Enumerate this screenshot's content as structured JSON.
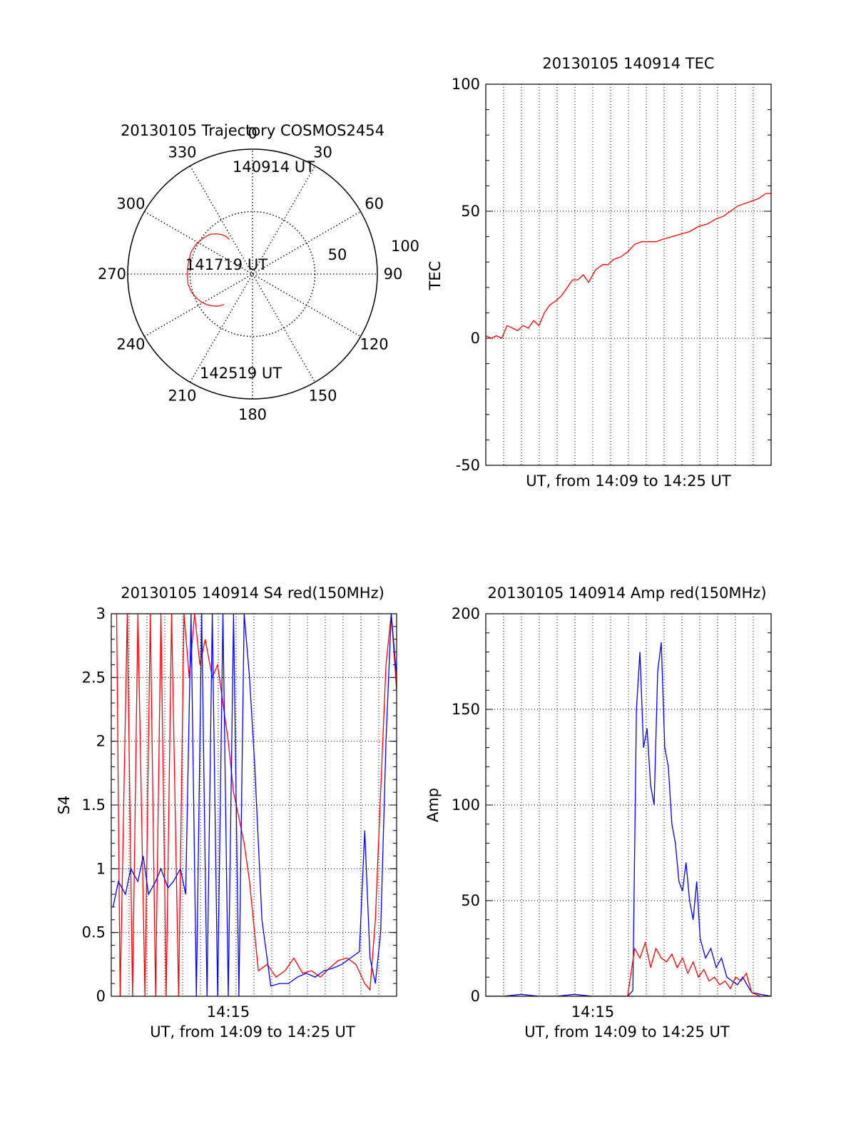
{
  "colors": {
    "red": "#ff0000",
    "blue": "#0000ff",
    "axis": "#000000"
  },
  "chart_data": [
    {
      "id": "trajectory",
      "type": "polar",
      "title": "20130105 Trajectory COSMOS2454",
      "angle_labels": [
        "0",
        "30",
        "60",
        "90",
        "120",
        "150",
        "180",
        "210",
        "240",
        "270",
        "300",
        "330"
      ],
      "radial_labels": [
        "50",
        "100"
      ],
      "annotations": [
        "140914 UT",
        "141719 UT",
        "142519 UT"
      ],
      "path_color": "red",
      "path": [
        [
          326,
          60
        ],
        [
          325,
          57
        ],
        [
          322,
          54
        ],
        [
          318,
          51
        ],
        [
          313,
          48
        ],
        [
          306,
          46
        ],
        [
          298,
          44
        ],
        [
          290,
          43
        ],
        [
          282,
          43
        ],
        [
          275,
          43
        ],
        [
          268,
          43
        ],
        [
          261,
          43
        ],
        [
          254,
          44
        ],
        [
          247,
          46
        ],
        [
          241,
          48
        ],
        [
          235,
          51
        ],
        [
          230,
          54
        ],
        [
          226,
          57
        ],
        [
          223,
          60
        ]
      ]
    },
    {
      "id": "tec",
      "type": "line",
      "title": "20130105 140914 TEC",
      "xlabel": "UT, from 14:09 to 14:25 UT",
      "ylabel": "TEC",
      "ylim": [
        -50,
        100
      ],
      "y_ticks": [
        "100",
        "50",
        "0",
        "-50"
      ],
      "x_ticks": [],
      "xlim": [
        0,
        16.1
      ],
      "series": [
        {
          "color": "red",
          "x": [
            0,
            0.3,
            0.6,
            0.9,
            1.2,
            1.5,
            1.8,
            2.1,
            2.4,
            2.7,
            3.0,
            3.3,
            3.6,
            4.0,
            4.3,
            4.6,
            4.9,
            5.2,
            5.5,
            5.8,
            6.2,
            6.6,
            6.9,
            7.2,
            7.6,
            8.0,
            8.4,
            8.8,
            9.2,
            9.6,
            10.0,
            10.5,
            11.0,
            11.5,
            12.0,
            12.5,
            13.0,
            13.4,
            13.8,
            14.2,
            14.6,
            15.0,
            15.4,
            15.8,
            16.1
          ],
          "y": [
            1,
            0,
            1,
            0,
            5,
            4,
            3,
            5,
            4,
            7,
            5,
            10,
            13,
            15,
            17,
            20,
            23,
            23,
            25,
            22,
            27,
            29,
            29,
            31,
            32,
            34,
            37,
            38,
            38,
            38,
            39,
            40,
            41,
            42,
            44,
            45,
            47,
            48,
            50,
            52,
            53,
            54,
            55,
            57,
            57
          ]
        }
      ]
    },
    {
      "id": "s4",
      "type": "line",
      "title": "20130105 140914 S4 red(150MHz)",
      "xlabel": "UT, from 14:09 to 14:25 UT",
      "ylabel": "S4",
      "ylim": [
        0,
        3
      ],
      "y_ticks": [
        "3",
        "2.5",
        "2",
        "1.5",
        "1",
        "0.5",
        "0"
      ],
      "x_ticks": [
        "14:15"
      ],
      "xlim": [
        0,
        16.1
      ],
      "series": [
        {
          "color": "red",
          "x": [
            0.3,
            0.5,
            0.9,
            1.2,
            1.5,
            1.9,
            2.2,
            2.5,
            2.8,
            3.1,
            3.4,
            3.8,
            4.1,
            4.4,
            4.7,
            5.0,
            5.3,
            5.7,
            6.0,
            6.3,
            6.6,
            6.9,
            7.2,
            7.5,
            7.8,
            8.3,
            8.8,
            9.3,
            9.8,
            10.3,
            10.8,
            11.3,
            11.8,
            12.3,
            12.8,
            13.3,
            13.8,
            14.3,
            14.6,
            14.9,
            15.2,
            15.5,
            15.8,
            16.1
          ],
          "y": [
            3,
            0,
            3,
            0,
            3,
            0,
            3,
            0,
            3,
            0,
            3,
            0,
            3,
            2.5,
            3,
            2.6,
            2.8,
            2.5,
            2.6,
            2.3,
            2.0,
            1.6,
            1.4,
            1.2,
            0.9,
            0.2,
            0.25,
            0.15,
            0.2,
            0.3,
            0.18,
            0.2,
            0.15,
            0.22,
            0.28,
            0.3,
            0.25,
            0.1,
            0.05,
            0.6,
            1.6,
            2.6,
            3,
            2.4
          ]
        },
        {
          "color": "blue",
          "x": [
            0.1,
            0.4,
            0.8,
            1.1,
            1.5,
            1.8,
            2.1,
            2.5,
            2.8,
            3.2,
            3.5,
            3.9,
            4.2,
            4.5,
            4.8,
            5.1,
            5.4,
            5.7,
            6.0,
            6.3,
            6.6,
            6.9,
            7.2,
            7.5,
            7.8,
            8.1,
            8.5,
            9.0,
            9.5,
            10.0,
            10.5,
            11.0,
            11.5,
            12.0,
            12.5,
            13.0,
            13.5,
            14.0,
            14.3,
            14.6,
            14.9,
            15.2,
            15.5,
            15.8,
            16.1
          ],
          "y": [
            0.7,
            0.9,
            0.8,
            1.0,
            0.9,
            1.1,
            0.8,
            0.9,
            1.0,
            0.85,
            0.9,
            1.0,
            0.8,
            3,
            0,
            3,
            0,
            3,
            0,
            3,
            0,
            3,
            0,
            3,
            2.5,
            1.8,
            0.6,
            0.08,
            0.1,
            0.1,
            0.15,
            0.18,
            0.15,
            0.2,
            0.22,
            0.25,
            0.3,
            0.35,
            1.3,
            0.3,
            0.1,
            0.5,
            2.0,
            3,
            2.5
          ]
        }
      ]
    },
    {
      "id": "amp",
      "type": "line",
      "title": "20130105 140914 Amp red(150MHz)",
      "xlabel": "UT, from 14:09 to 14:25 UT",
      "ylabel": "Amp",
      "ylim": [
        0,
        200
      ],
      "y_ticks": [
        "200",
        "150",
        "100",
        "50",
        "0"
      ],
      "x_ticks": [
        "14:15"
      ],
      "xlim": [
        0,
        16.1
      ],
      "series": [
        {
          "color": "blue",
          "x": [
            0,
            1,
            2,
            3,
            4,
            5,
            6,
            7,
            8.0,
            8.3,
            8.5,
            8.7,
            8.9,
            9.1,
            9.3,
            9.5,
            9.7,
            9.9,
            10.1,
            10.3,
            10.5,
            10.7,
            10.9,
            11.1,
            11.3,
            11.5,
            11.7,
            11.9,
            12.1,
            12.4,
            12.7,
            13.0,
            13.3,
            13.6,
            13.9,
            14.2,
            14.5,
            14.8,
            15.0,
            15.5,
            16.1
          ],
          "y": [
            0,
            0,
            1,
            0,
            0,
            1,
            0,
            0,
            0,
            3,
            150,
            180,
            130,
            140,
            110,
            100,
            170,
            185,
            130,
            120,
            90,
            80,
            60,
            55,
            70,
            50,
            40,
            60,
            30,
            20,
            25,
            15,
            20,
            10,
            8,
            6,
            10,
            5,
            2,
            1,
            0
          ]
        },
        {
          "color": "red",
          "x": [
            0,
            2,
            4,
            6,
            8.0,
            8.4,
            8.7,
            9.0,
            9.3,
            9.6,
            9.9,
            10.2,
            10.5,
            10.8,
            11.1,
            11.4,
            11.7,
            12.0,
            12.3,
            12.6,
            12.9,
            13.2,
            13.5,
            13.8,
            14.1,
            14.4,
            14.7,
            15.0,
            15.5,
            16.1
          ],
          "y": [
            0,
            0,
            0,
            0,
            0,
            25,
            20,
            28,
            15,
            25,
            20,
            18,
            22,
            15,
            20,
            12,
            18,
            10,
            14,
            8,
            10,
            6,
            8,
            4,
            10,
            8,
            12,
            2,
            0,
            0
          ]
        }
      ]
    }
  ]
}
